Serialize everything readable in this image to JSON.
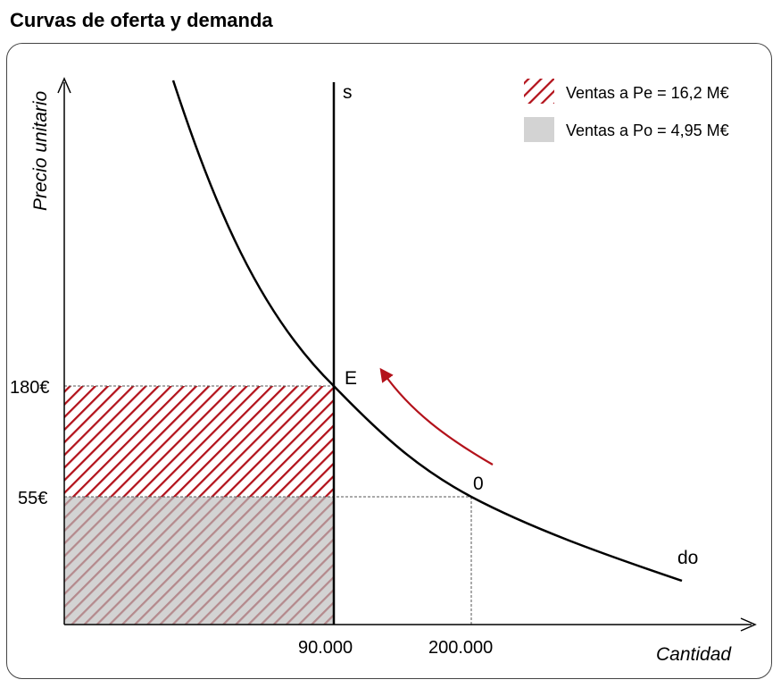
{
  "title": "Curvas de oferta y demanda",
  "colors": {
    "accent": "#b3121b",
    "stripe": "#b3121b",
    "gray_fill": "#d3d3d3",
    "line": "#000000",
    "guide": "#555555"
  },
  "axes": {
    "y_label": "Precio unitario",
    "x_label": "Cantidad",
    "y_ticks": [
      "180€",
      "55€"
    ],
    "x_ticks": [
      "90.000",
      "200.000"
    ]
  },
  "curves": {
    "supply_label": "s",
    "demand_label": "do"
  },
  "points": {
    "equilibrium": "E",
    "original": "0"
  },
  "legend": {
    "items": [
      {
        "label": "Ventas a Pe = 16,2 M€",
        "swatch": "hatched-red"
      },
      {
        "label": "Ventas a Po = 4,95 M€",
        "swatch": "gray"
      }
    ]
  }
}
